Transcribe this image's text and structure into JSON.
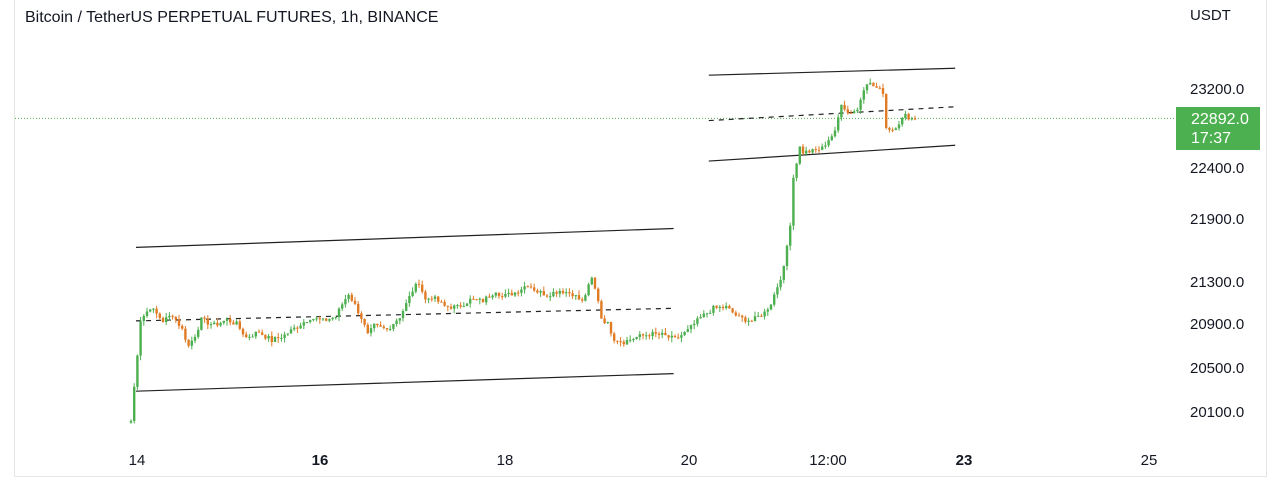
{
  "header": {
    "title": "Bitcoin / TetherUS PERPETUAL FUTURES, 1h, BINANCE",
    "currency": "USDT"
  },
  "price_badge": {
    "price": "22892.0",
    "countdown": "17:37",
    "color": "#4caf50"
  },
  "colors": {
    "up": "#4caf50",
    "down": "#e07b24",
    "trendline": "#222222",
    "last_price_line": "#4caf50"
  },
  "chart_data": {
    "type": "candlestick",
    "symbol": "Bitcoin / TetherUS PERPETUAL FUTURES",
    "interval": "1h",
    "exchange": "BINANCE",
    "y_axis": {
      "unit": "USDT",
      "ticks": [
        23200.0,
        22400.0,
        21900.0,
        21300.0,
        20900.0,
        20500.0,
        20100.0
      ],
      "tick_labels": [
        "23200.0",
        "22400.0",
        "21900.0",
        "21300.0",
        "20900.0",
        "20500.0",
        "20100.0"
      ]
    },
    "x_axis": {
      "tick_labels": [
        "14",
        "16",
        "18",
        "20",
        "12:00",
        "23",
        "25"
      ],
      "bold": [
        false,
        true,
        false,
        false,
        false,
        true,
        false
      ]
    },
    "last_price": 22892.0,
    "candle_path": [
      {
        "x": 0,
        "y": 20010
      },
      {
        "x": 3,
        "y": 20930
      },
      {
        "x": 6,
        "y": 21050
      },
      {
        "x": 10,
        "y": 20920
      },
      {
        "x": 13,
        "y": 20980
      },
      {
        "x": 16,
        "y": 20840
      },
      {
        "x": 18,
        "y": 20690
      },
      {
        "x": 20,
        "y": 20790
      },
      {
        "x": 22,
        "y": 20930
      },
      {
        "x": 26,
        "y": 20880
      },
      {
        "x": 30,
        "y": 20930
      },
      {
        "x": 33,
        "y": 20890
      },
      {
        "x": 36,
        "y": 20770
      },
      {
        "x": 40,
        "y": 20820
      },
      {
        "x": 44,
        "y": 20740
      },
      {
        "x": 48,
        "y": 20790
      },
      {
        "x": 52,
        "y": 20870
      },
      {
        "x": 56,
        "y": 20950
      },
      {
        "x": 60,
        "y": 20920
      },
      {
        "x": 64,
        "y": 20960
      },
      {
        "x": 66,
        "y": 21080
      },
      {
        "x": 68,
        "y": 21180
      },
      {
        "x": 70,
        "y": 21070
      },
      {
        "x": 72,
        "y": 20950
      },
      {
        "x": 74,
        "y": 20790
      },
      {
        "x": 76,
        "y": 20870
      },
      {
        "x": 80,
        "y": 20840
      },
      {
        "x": 84,
        "y": 20960
      },
      {
        "x": 86,
        "y": 21080
      },
      {
        "x": 88,
        "y": 21210
      },
      {
        "x": 90,
        "y": 21290
      },
      {
        "x": 92,
        "y": 21120
      },
      {
        "x": 94,
        "y": 21150
      },
      {
        "x": 98,
        "y": 21060
      },
      {
        "x": 102,
        "y": 21050
      },
      {
        "x": 106,
        "y": 21120
      },
      {
        "x": 110,
        "y": 21110
      },
      {
        "x": 114,
        "y": 21210
      },
      {
        "x": 116,
        "y": 21150
      },
      {
        "x": 120,
        "y": 21190
      },
      {
        "x": 124,
        "y": 21270
      },
      {
        "x": 127,
        "y": 21200
      },
      {
        "x": 130,
        "y": 21170
      },
      {
        "x": 134,
        "y": 21210
      },
      {
        "x": 138,
        "y": 21180
      },
      {
        "x": 141,
        "y": 21100
      },
      {
        "x": 144,
        "y": 21320
      },
      {
        "x": 146,
        "y": 21120
      },
      {
        "x": 147,
        "y": 20950
      },
      {
        "x": 149,
        "y": 20890
      },
      {
        "x": 151,
        "y": 20760
      },
      {
        "x": 154,
        "y": 20730
      },
      {
        "x": 158,
        "y": 20770
      },
      {
        "x": 162,
        "y": 20800
      },
      {
        "x": 166,
        "y": 20790
      },
      {
        "x": 170,
        "y": 20750
      },
      {
        "x": 174,
        "y": 20830
      },
      {
        "x": 178,
        "y": 20950
      },
      {
        "x": 182,
        "y": 21040
      },
      {
        "x": 186,
        "y": 21050
      },
      {
        "x": 190,
        "y": 20950
      },
      {
        "x": 194,
        "y": 20920
      },
      {
        "x": 198,
        "y": 21000
      },
      {
        "x": 200,
        "y": 21090
      },
      {
        "x": 202,
        "y": 21250
      },
      {
        "x": 204,
        "y": 21420
      },
      {
        "x": 206,
        "y": 21850
      },
      {
        "x": 207,
        "y": 22300
      },
      {
        "x": 209,
        "y": 22600
      },
      {
        "x": 210,
        "y": 22550
      },
      {
        "x": 213,
        "y": 22560
      },
      {
        "x": 216,
        "y": 22590
      },
      {
        "x": 218,
        "y": 22680
      },
      {
        "x": 220,
        "y": 22750
      },
      {
        "x": 222,
        "y": 23050
      },
      {
        "x": 224,
        "y": 22950
      },
      {
        "x": 227,
        "y": 22980
      },
      {
        "x": 229,
        "y": 23200
      },
      {
        "x": 230,
        "y": 23260
      },
      {
        "x": 233,
        "y": 23200
      },
      {
        "x": 235,
        "y": 23160
      },
      {
        "x": 236,
        "y": 22800
      },
      {
        "x": 238,
        "y": 22780
      },
      {
        "x": 240,
        "y": 22850
      },
      {
        "x": 242,
        "y": 22920
      },
      {
        "x": 244,
        "y": 22890
      },
      {
        "x": 245,
        "y": 22892
      }
    ],
    "channels": [
      {
        "name": "lower-channel",
        "upper": [
          [
            0,
            21620
          ],
          [
            168,
            21800
          ]
        ],
        "middle": [
          [
            0,
            20920
          ],
          [
            168,
            21040
          ]
        ],
        "lower": [
          [
            0,
            20280
          ],
          [
            168,
            20440
          ]
        ]
      },
      {
        "name": "upper-channel",
        "upper": [
          [
            179,
            23330
          ],
          [
            256,
            23400
          ]
        ],
        "middle": [
          [
            179,
            22870
          ],
          [
            256,
            23010
          ]
        ],
        "lower": [
          [
            179,
            22460
          ],
          [
            256,
            22620
          ]
        ]
      }
    ]
  }
}
